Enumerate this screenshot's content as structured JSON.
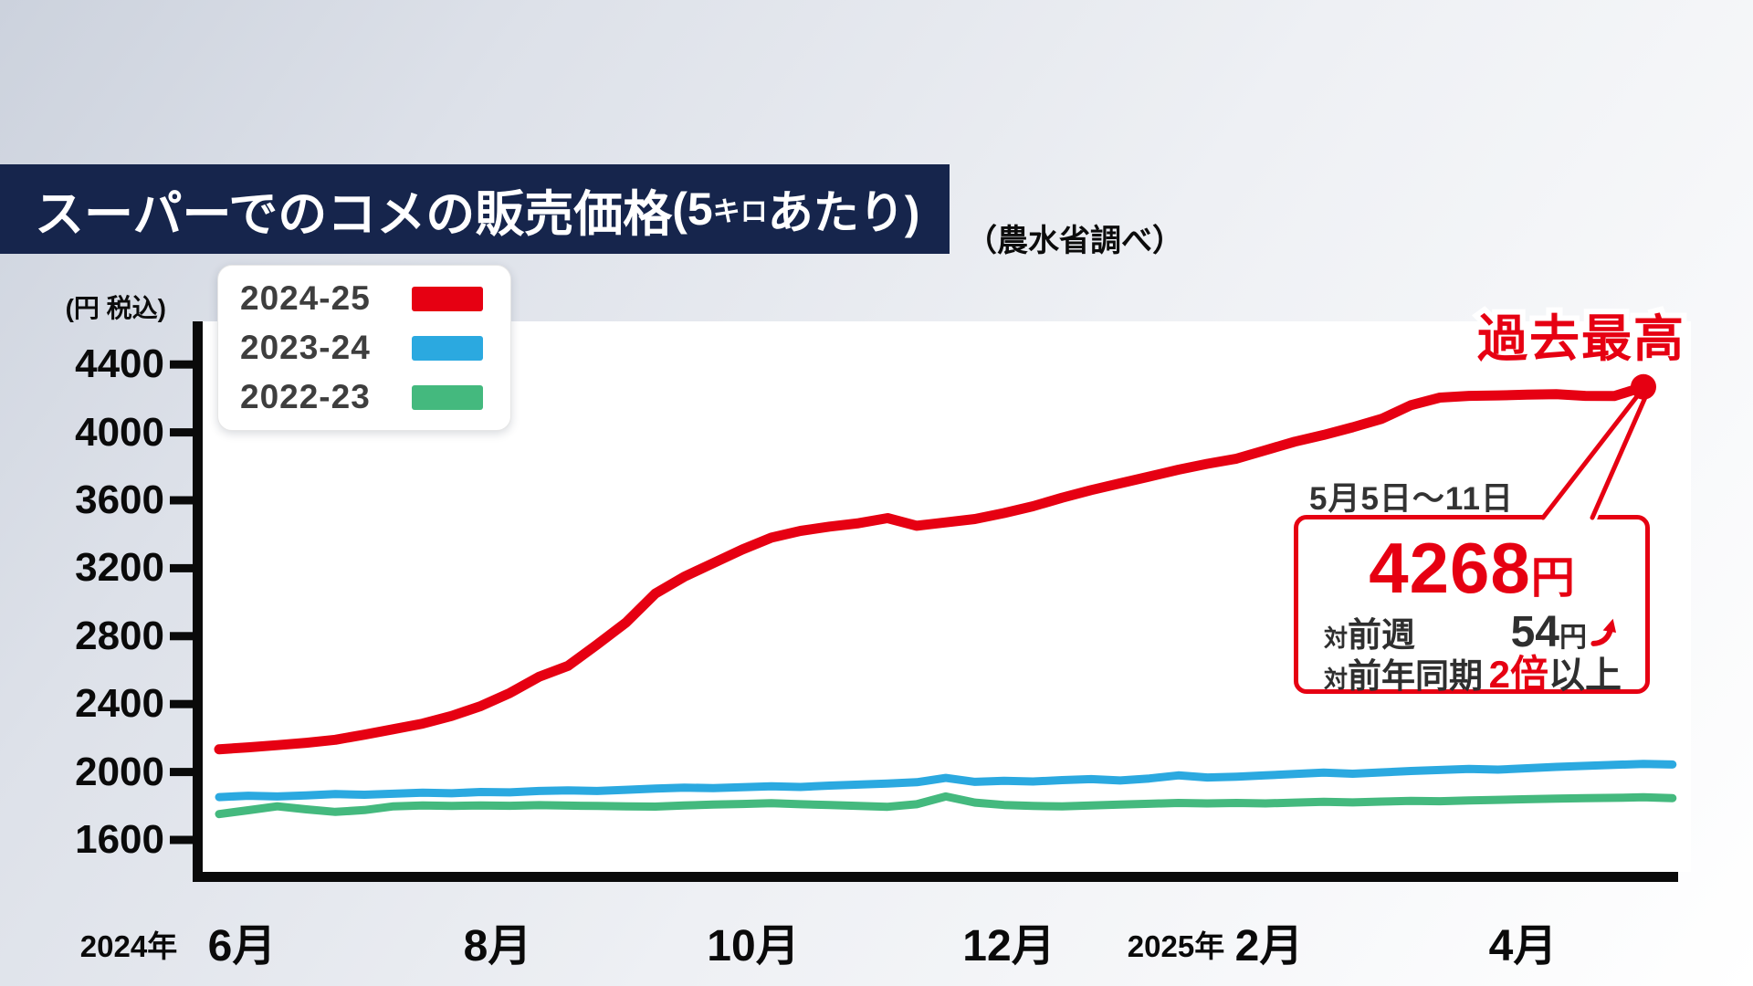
{
  "page": {
    "title_main": "スーパーでのコメの販売価格",
    "title_paren_open": "(5",
    "title_small": "キロ",
    "title_paren_close": "あたり)",
    "subtitle": "（農水省調べ）"
  },
  "chart_data": {
    "type": "line",
    "title": "スーパーでのコメの販売価格(5キロあたり)",
    "source_note": "（農水省調べ）",
    "ylabel": "(円 税込)",
    "ylim": [
      1400,
      4600
    ],
    "y_ticks": [
      4400,
      4000,
      3600,
      3200,
      2800,
      2400,
      2000,
      1600
    ],
    "x_tick_labels": [
      "6月",
      "8月",
      "10月",
      "12月",
      "2月",
      "4月"
    ],
    "x_year_labels": [
      "2024年",
      "2025年"
    ],
    "grid": false,
    "legend_position": "top-left",
    "series": [
      {
        "name": "2024-25",
        "color": "#e60012",
        "values": [
          2134,
          2145,
          2158,
          2172,
          2190,
          2220,
          2252,
          2285,
          2330,
          2388,
          2465,
          2560,
          2625,
          2750,
          2880,
          3050,
          3150,
          3230,
          3310,
          3380,
          3420,
          3445,
          3465,
          3495,
          3450,
          3470,
          3490,
          3525,
          3565,
          3615,
          3660,
          3700,
          3740,
          3780,
          3815,
          3845,
          3895,
          3945,
          3985,
          4030,
          4080,
          4160,
          4205,
          4215,
          4218,
          4222,
          4225,
          4215,
          4214,
          4268
        ]
      },
      {
        "name": "2023-24",
        "color": "#2BA9E0",
        "values": [
          1852,
          1860,
          1856,
          1862,
          1870,
          1866,
          1872,
          1878,
          1875,
          1882,
          1880,
          1888,
          1892,
          1888,
          1895,
          1902,
          1908,
          1905,
          1910,
          1916,
          1912,
          1920,
          1926,
          1932,
          1940,
          1965,
          1942,
          1948,
          1944,
          1952,
          1958,
          1950,
          1962,
          1980,
          1968,
          1972,
          1980,
          1988,
          1996,
          1990,
          1998,
          2006,
          2012,
          2018,
          2014,
          2022,
          2030,
          2036,
          2042,
          2048,
          2044
        ]
      },
      {
        "name": "2022-23",
        "color": "#44B97E",
        "values": [
          1752,
          1775,
          1798,
          1780,
          1765,
          1776,
          1798,
          1803,
          1800,
          1803,
          1801,
          1805,
          1802,
          1800,
          1798,
          1796,
          1803,
          1808,
          1812,
          1816,
          1810,
          1806,
          1800,
          1795,
          1810,
          1856,
          1820,
          1806,
          1800,
          1798,
          1803,
          1808,
          1813,
          1818,
          1815,
          1818,
          1815,
          1820,
          1824,
          1821,
          1826,
          1830,
          1828,
          1833,
          1836,
          1840,
          1843,
          1846,
          1848,
          1851,
          1846
        ]
      }
    ],
    "annotations": {
      "record_high": "過去最高",
      "callout": {
        "date_range": "5月5日～11日",
        "price": "4268",
        "price_unit": "円",
        "rows": [
          {
            "prefix": "対",
            "label": "前週",
            "value": "54",
            "unit": "円",
            "arrow": "up"
          },
          {
            "prefix": "対",
            "label": "前年同期",
            "value_highlight": "2倍",
            "value_rest": "以上"
          }
        ]
      }
    }
  }
}
